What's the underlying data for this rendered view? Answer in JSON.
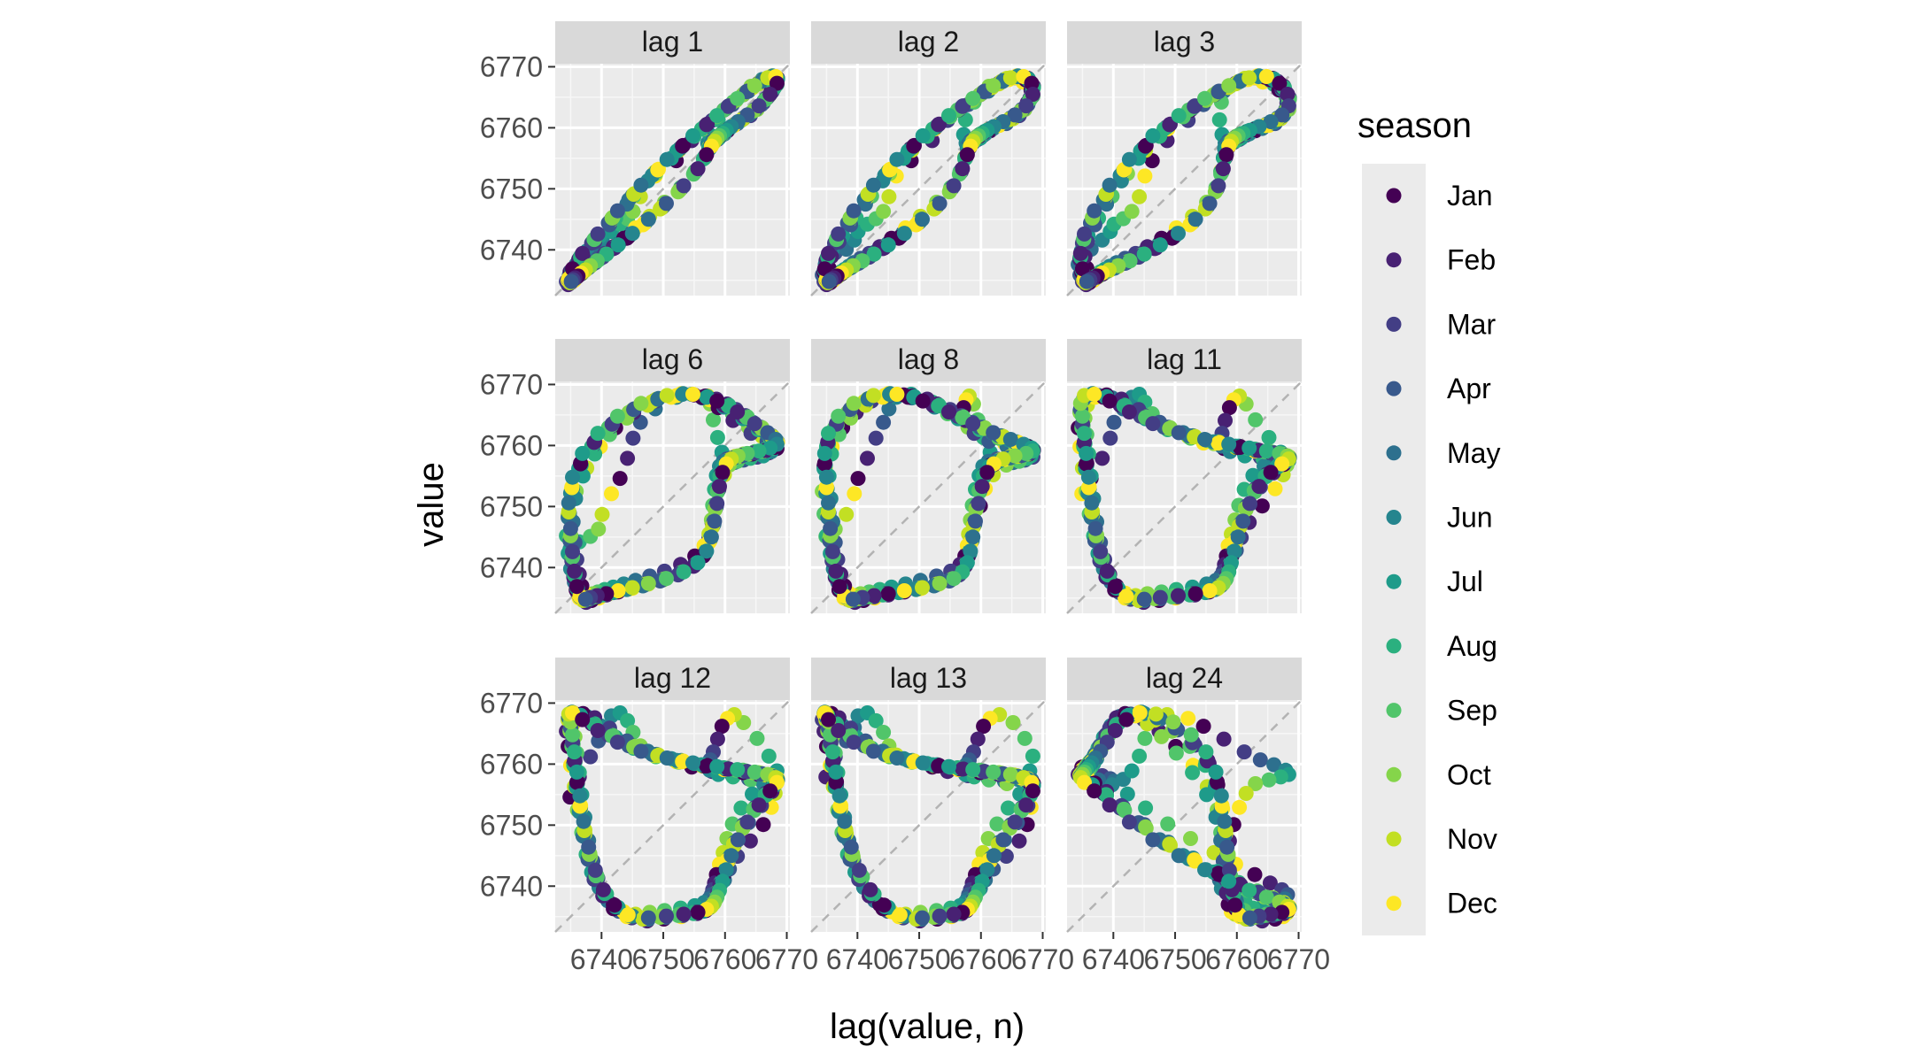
{
  "chart_data": {
    "type": "scatter",
    "facet_prefix": "lag",
    "lags": [
      1,
      2,
      3,
      6,
      8,
      11,
      12,
      13,
      24
    ],
    "panel_titles": [
      "lag 1",
      "lag 2",
      "lag 3",
      "lag 6",
      "lag 8",
      "lag 11",
      "lag 12",
      "lag 13",
      "lag 24"
    ],
    "xlabel": "lag(value, n)",
    "ylabel": "value",
    "xlim": [
      6732.5,
      6770.5
    ],
    "ylim": [
      6732.5,
      6770.5
    ],
    "x_ticks": [
      6740,
      6750,
      6760,
      6770
    ],
    "y_ticks": [
      6740,
      6750,
      6760,
      6770
    ],
    "x_tick_labels": [
      "6740",
      "6750",
      "6760",
      "6770"
    ],
    "y_tick_labels": [
      "6740",
      "6750",
      "6760",
      "6770"
    ],
    "reference_line": "y = x (dashed grey)",
    "grid": true,
    "legend": {
      "title": "season",
      "position": "right",
      "entries": [
        "Jan",
        "Feb",
        "Mar",
        "Apr",
        "May",
        "Jun",
        "Jul",
        "Aug",
        "Sep",
        "Oct",
        "Nov",
        "Dec"
      ],
      "colors": [
        "#440154",
        "#482173",
        "#433E85",
        "#38598C",
        "#2D708E",
        "#25858E",
        "#1E9B8A",
        "#2BB07F",
        "#51C56A",
        "#85D54A",
        "#C2DF23",
        "#FDE725"
      ]
    },
    "series_values": [
      6734.9,
      6736.4,
      6738.2,
      6739.5,
      6740.1,
      6741.6,
      6743.0,
      6744.2,
      6745.1,
      6746.3,
      6748.7,
      6752.1,
      6754.6,
      6757.9,
      6761.2,
      6763.8,
      6766.0,
      6767.9,
      6768.4,
      6767.1,
      6765.2,
      6763.0,
      6761.5,
      6760.4,
      6759.5,
      6758.8,
      6758.1,
      6757.6,
      6757.2,
      6757.5,
      6758.9,
      6761.3,
      6764.2,
      6766.8,
      6768.1,
      6767.5,
      6766.2,
      6764.1,
      6762.0,
      6760.7,
      6759.9,
      6759.0,
      6758.3,
      6757.9,
      6757.4,
      6756.8,
      6755.2,
      6752.9,
      6750.1,
      6747.4,
      6744.9,
      6742.8,
      6741.0,
      6739.6,
      6738.4,
      6737.5,
      6736.8,
      6736.1,
      6735.6,
      6735.0,
      6734.6,
      6734.3,
      6734.8,
      6735.9,
      6737.6,
      6739.8,
      6742.3,
      6745.2,
      6748.8,
      6752.5,
      6756.3,
      6759.8,
      6762.9,
      6765.4,
      6767.3,
      6768.2,
      6767.8,
      6766.3,
      6764.4,
      6762.6,
      6761.2,
      6760.3,
      6759.7,
      6759.1,
      6758.6,
      6758.3,
      6758.0,
      6757.8,
      6757.4,
      6756.6,
      6755.1,
      6752.8,
      6750.2,
      6747.8,
      6745.5,
      6743.6,
      6741.9,
      6740.5,
      6739.4,
      6738.6,
      6737.9,
      6737.3,
      6736.8,
      6736.4,
      6736.0,
      6735.7,
      6735.4,
      6735.8,
      6737.0,
      6738.9,
      6741.3,
      6744.1,
      6747.5,
      6751.3,
      6755.0,
      6758.6,
      6761.8,
      6764.5,
      6766.6,
      6767.9,
      6768.3,
      6767.6,
      6765.9,
      6763.8,
      6762.1,
      6760.9,
      6760.1,
      6759.5,
      6759.0,
      6758.6,
      6758.2,
      6757.7,
      6756.9,
      6755.5,
      6753.2,
      6750.4,
      6747.6,
      6745.0,
      6742.7,
      6740.8,
      6739.3,
      6738.2,
      6737.3,
      6736.6,
      6736.0,
      6735.5,
      6735.2,
      6734.9,
      6734.6,
      6735.1,
      6736.5,
      6738.7,
      6741.5,
      6744.8,
      6748.6,
      6752.7,
      6756.6,
      6760.1,
      6763.1,
      6765.6,
      6767.4,
      6768.3,
      6768.0,
      6766.7,
      6764.8,
      6762.9,
      6761.4,
      6760.4,
      6759.7,
      6759.2,
      6758.8,
      6758.4,
      6758.0,
      6757.5,
      6756.6,
      6755.0,
      6752.6,
      6749.8,
      6746.9,
      6744.3,
      6742.1,
      6740.3,
      6739.0,
      6738.0,
      6737.2,
      6736.6,
      6736.1,
      6735.7,
      6735.4,
      6735.1,
      6734.8,
      6735.3,
      6736.7,
      6738.8,
      6741.6,
      6745.0,
      6748.9,
      6752.9,
      6756.8,
      6760.3,
      6763.3,
      6765.8,
      6767.6,
      6768.5,
      6768.1,
      6766.8,
      6764.9,
      6763.0,
      6761.6,
      6760.6,
      6759.9,
      6759.3,
      6758.9,
      6758.5,
      6758.1,
      6757.6,
      6756.8,
      6755.3,
      6752.9,
      6750.1,
      6747.2,
      6744.6,
      6742.4,
      6740.6,
      6739.2,
      6738.1,
      6737.3,
      6736.6,
      6736.1,
      6735.7,
      6735.3,
      6735.0,
      6734.7,
      6735.2,
      6736.6,
      6738.9,
      6741.8,
      6745.3,
      6749.2,
      6753.2,
      6757.1,
      6760.6,
      6763.6,
      6766.0,
      6767.7,
      6768.5,
      6768.0,
      6766.6,
      6764.7,
      6762.9,
      6761.5,
      6760.5,
      6759.8,
      6759.2,
      6758.8,
      6758.4,
      6758.0,
      6757.4,
      6756.5,
      6754.9,
      6752.4,
      6749.5,
      6746.7,
      6744.1,
      6741.9,
      6740.2,
      6738.8,
      6737.8,
      6737.0,
      6736.4,
      6735.9,
      6735.5,
      6735.2,
      6734.9,
      6734.6,
      6735.0,
      6736.3,
      6738.4,
      6741.1,
      6744.4,
      6748.2,
      6752.2,
      6756.2,
      6759.8,
      6762.9,
      6765.4,
      6767.2,
      6768.2,
      6767.9,
      6766.6,
      6764.8,
      6763.0,
      6761.6,
      6760.6,
      6759.9,
      6759.4,
      6759.0,
      6758.6,
      6758.2,
      6757.6,
      6756.8,
      6755.2,
      6752.8,
      6750.0,
      6747.1,
      6744.5,
      6742.3,
      6740.5,
      6739.1,
      6738.0,
      6737.2,
      6736.5,
      6736.0,
      6735.6,
      6735.3,
      6735.0,
      6734.7,
      6735.2,
      6736.6,
      6738.8,
      6741.7,
      6745.2,
      6749.1,
      6753.1,
      6757.0,
      6760.5,
      6763.5,
      6765.9,
      6767.6,
      6768.4,
      6767.9,
      6766.5,
      6764.6,
      6762.8,
      6761.4,
      6760.4,
      6759.7,
      6759.2,
      6758.8,
      6758.4,
      6758.0,
      6757.5,
      6756.6,
      6755.0,
      6752.6,
      6749.7,
      6746.9,
      6744.3,
      6742.1,
      6740.3,
      6739.0,
      6737.9,
      6737.1,
      6736.5,
      6736.0,
      6735.6,
      6735.3,
      6735.0,
      6734.7,
      6735.3,
      6736.9,
      6739.4,
      6742.6,
      6746.4,
      6750.6,
      6754.8,
      6758.7,
      6762.0,
      6764.8,
      6766.9,
      6768.2,
      6768.4,
      6767.3,
      6765.5,
      6763.6,
      6762.1,
      6761.0,
      6760.2,
      6759.6,
      6759.1,
      6758.7,
      6758.3,
      6757.8,
      6757.0,
      6755.6,
      6753.3,
      6750.5,
      6747.6,
      6745.0,
      6742.7,
      6740.8,
      6739.3,
      6738.2,
      6737.4,
      6736.7,
      6736.2,
      6735.7,
      6735.4,
      6735.1,
      6734.8
    ]
  }
}
